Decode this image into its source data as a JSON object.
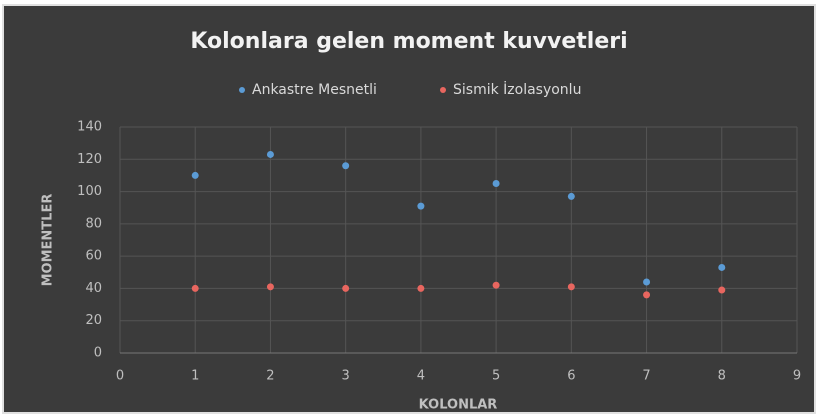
{
  "chart_data": {
    "type": "scatter",
    "title": "Kolonlara gelen moment kuvvetleri",
    "x_label": "KOLONLAR",
    "y_label": "MOMENTLER",
    "xlim": [
      0,
      9
    ],
    "xticks": [
      0,
      1,
      2,
      3,
      4,
      5,
      6,
      7,
      8,
      9
    ],
    "ylim": [
      0,
      140
    ],
    "yticks": [
      0,
      20,
      40,
      60,
      80,
      100,
      120,
      140
    ],
    "grid": true,
    "legend": "top",
    "series": [
      {
        "name": "Ankastre Mesnetli",
        "color": "#5b9bd5",
        "x": [
          1,
          2,
          3,
          4,
          5,
          6,
          7,
          8
        ],
        "values": [
          110,
          123,
          116,
          91,
          105,
          97,
          44,
          53
        ]
      },
      {
        "name": "Sismik İzolasyonlu",
        "color": "#e8665f",
        "x": [
          1,
          2,
          3,
          4,
          5,
          6,
          7,
          8
        ],
        "values": [
          40,
          41,
          40,
          40,
          42,
          41,
          36,
          39
        ]
      }
    ]
  }
}
